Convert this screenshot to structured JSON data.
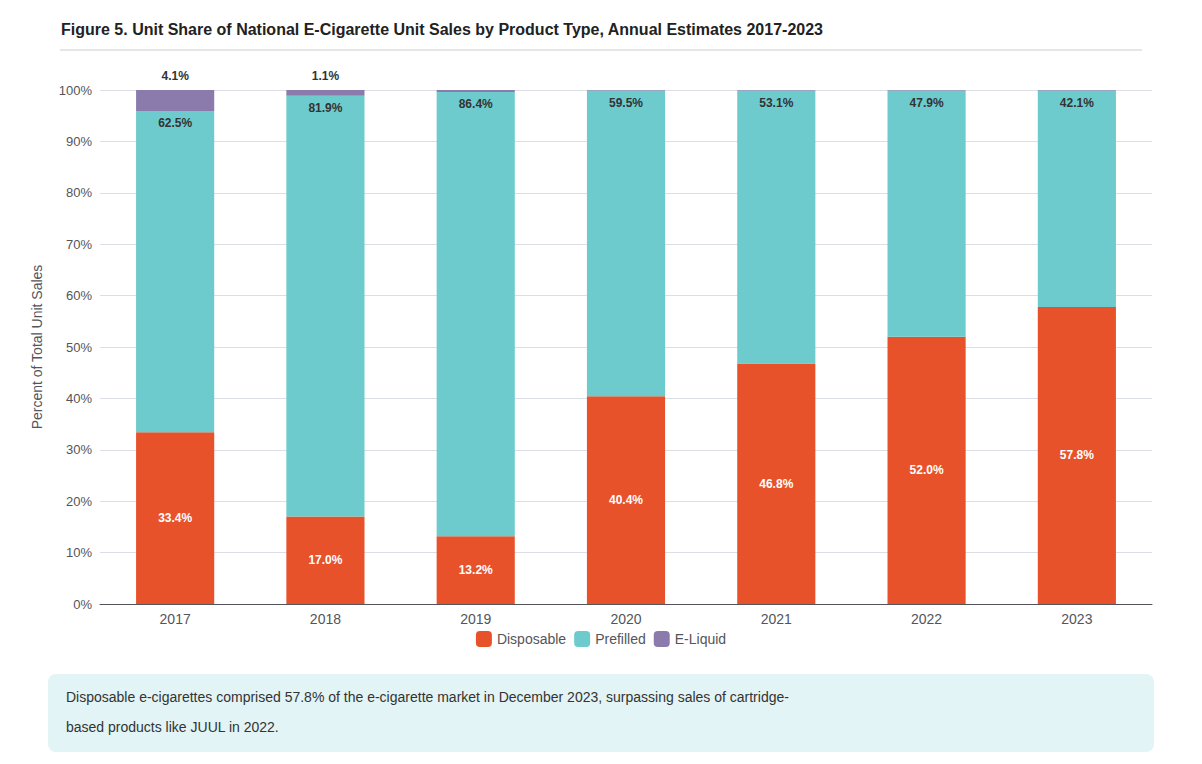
{
  "chart_data": {
    "type": "bar",
    "title": "Figure 5. Unit Share of National E-Cigarette Unit Sales by Product Type, Annual Estimates 2017-2023",
    "categories": [
      "2017",
      "2018",
      "2019",
      "2020",
      "2021",
      "2022",
      "2023"
    ],
    "series": [
      {
        "name": "Disposable",
        "color": "#E8522A",
        "values": [
          33.4,
          17.0,
          13.2,
          40.4,
          46.8,
          52.0,
          57.8
        ],
        "value_labels": [
          "33.4%",
          "17.0%",
          "13.2%",
          "40.4%",
          "46.8%",
          "52.0%",
          "57.8%"
        ]
      },
      {
        "name": "Prefilled",
        "color": "#6DCBCE",
        "values": [
          62.5,
          81.9,
          86.4,
          59.5,
          53.1,
          47.9,
          42.1
        ],
        "value_labels": [
          "62.5%",
          "81.9%",
          "86.4%",
          "59.5%",
          "53.1%",
          "47.9%",
          "42.1%"
        ]
      },
      {
        "name": "E-Liquid",
        "color": "#8B7BAD",
        "values": [
          4.1,
          1.1,
          0.4,
          0.1,
          0.1,
          0.1,
          0.1
        ],
        "value_labels": [
          "4.1%",
          "1.1%",
          null,
          null,
          null,
          null,
          null
        ]
      }
    ],
    "stacked": true,
    "data_labels": true,
    "ylabel": "Percent of Total Unit Sales",
    "ylim": [
      0,
      100
    ],
    "yticks": [
      {
        "value": 0,
        "label": "0%"
      },
      {
        "value": 10,
        "label": "10%"
      },
      {
        "value": 20,
        "label": "20%"
      },
      {
        "value": 30,
        "label": "30%"
      },
      {
        "value": 40,
        "label": "40%"
      },
      {
        "value": 50,
        "label": "50%"
      },
      {
        "value": 60,
        "label": "60%"
      },
      {
        "value": 70,
        "label": "70%"
      },
      {
        "value": 80,
        "label": "80%"
      },
      {
        "value": 90,
        "label": "90%"
      },
      {
        "value": 100,
        "label": "100%"
      }
    ],
    "grid": true,
    "legend": "bottom",
    "annotations": [
      "Disposable e-cigarettes comprised 57.8% of the e-cigarette market in December 2023, surpassing sales of cartridge-",
      "based products like JUUL in 2022."
    ]
  }
}
